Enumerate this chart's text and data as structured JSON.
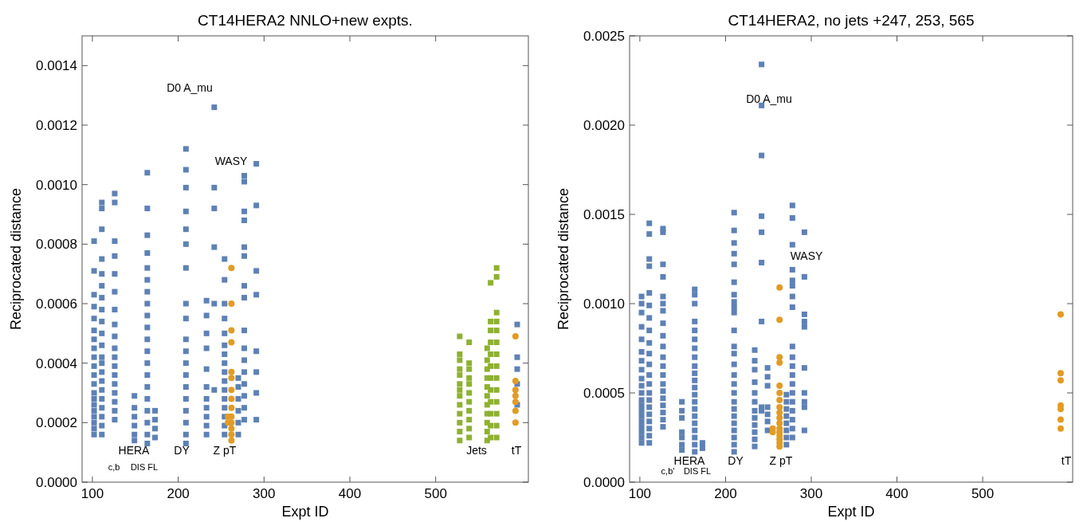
{
  "chart_data": [
    {
      "type": "scatter",
      "title": "CT14HERA2 NNLO+new expts.",
      "xlabel": "Expt ID",
      "ylabel": "Reciprocated distance",
      "xlim": [
        88,
        608
      ],
      "ylim": [
        0,
        0.0015
      ],
      "xticks": [
        100,
        200,
        300,
        400,
        500
      ],
      "yticks": [
        {
          "value": 0,
          "label": "0.0000"
        },
        {
          "value": 0.0002,
          "label": "0.0002"
        },
        {
          "value": 0.0004,
          "label": "0.0004"
        },
        {
          "value": 0.0006,
          "label": "0.0006"
        },
        {
          "value": 0.0008,
          "label": "0.0008"
        },
        {
          "value": 0.001,
          "label": "0.0010"
        },
        {
          "value": 0.0012,
          "label": "0.0012"
        },
        {
          "value": 0.0014,
          "label": "0.0014"
        }
      ],
      "grid": false,
      "annotations": [
        "D0 A_mu",
        "WASY",
        "HERA",
        "c,b",
        "DIS FL",
        "DY",
        "Z pT",
        "Jets",
        "tT"
      ],
      "series": [
        {
          "color": "#5e81b5",
          "marker": "square",
          "x": [
            102,
            102,
            102,
            102,
            102,
            102,
            102,
            102,
            102,
            102,
            102,
            102,
            102,
            102,
            102,
            102,
            102,
            102,
            102,
            102
          ],
          "values": [
            0.00016,
            0.00018,
            0.0002,
            0.00022,
            0.00024,
            0.00026,
            0.00028,
            0.0003,
            0.00033,
            0.00036,
            0.00039,
            0.00042,
            0.00045,
            0.00048,
            0.00051,
            0.00055,
            0.00059,
            0.00063,
            0.00071,
            0.00081
          ]
        },
        {
          "color": "#5e81b5",
          "marker": "square",
          "x": [
            111,
            111,
            111,
            111,
            111,
            111,
            111,
            111,
            111,
            111,
            111,
            111,
            111,
            111,
            111,
            111,
            111,
            111,
            111,
            111,
            111
          ],
          "values": [
            0.00016,
            0.00019,
            0.00022,
            0.00025,
            0.00028,
            0.00031,
            0.00034,
            0.00037,
            0.0004,
            0.00042,
            0.00046,
            0.0005,
            0.00054,
            0.00058,
            0.00062,
            0.00066,
            0.0007,
            0.00075,
            0.00085,
            0.00094,
            0.00092
          ]
        },
        {
          "color": "#5e81b5",
          "marker": "square",
          "x": [
            126,
            126,
            126,
            126,
            126,
            126,
            126,
            126,
            126,
            126,
            126,
            126,
            126,
            126,
            126,
            126,
            126,
            126
          ],
          "values": [
            0.00021,
            0.00024,
            0.00027,
            0.0003,
            0.00033,
            0.00036,
            0.00039,
            0.00042,
            0.00045,
            0.00049,
            0.00053,
            0.00058,
            0.00064,
            0.0007,
            0.00076,
            0.00081,
            0.00094,
            0.00097
          ]
        },
        {
          "color": "#5e81b5",
          "marker": "square",
          "x": [
            149,
            149,
            149,
            149,
            149,
            149
          ],
          "values": [
            0.00014,
            0.00016,
            0.00019,
            0.00022,
            0.00025,
            0.00029
          ]
        },
        {
          "color": "#5e81b5",
          "marker": "square",
          "x": [
            164,
            164,
            164,
            164,
            164,
            164,
            164,
            164,
            164,
            164,
            164,
            164,
            164,
            164,
            164,
            164,
            164,
            164,
            164,
            164
          ],
          "values": [
            0.00013,
            0.00016,
            0.0002,
            0.00024,
            0.00028,
            0.00032,
            0.00036,
            0.0004,
            0.00044,
            0.00048,
            0.00052,
            0.00056,
            0.0006,
            0.00064,
            0.00068,
            0.00072,
            0.00077,
            0.00083,
            0.00092,
            0.00104
          ]
        },
        {
          "color": "#5e81b5",
          "marker": "square",
          "x": [
            173,
            173,
            173,
            173
          ],
          "values": [
            0.00015,
            0.00018,
            0.00021,
            0.00024
          ]
        },
        {
          "color": "#5e81b5",
          "marker": "square",
          "x": [
            209,
            209,
            209,
            209,
            209,
            209,
            209,
            209,
            209,
            209,
            209,
            209,
            209,
            209,
            209,
            209,
            209,
            209,
            209
          ],
          "values": [
            0.00013,
            0.00016,
            0.0002,
            0.00024,
            0.00028,
            0.00032,
            0.00036,
            0.0004,
            0.00044,
            0.00048,
            0.00055,
            0.0006,
            0.00072,
            0.0008,
            0.00085,
            0.00091,
            0.00099,
            0.00105,
            0.00112
          ]
        },
        {
          "color": "#5e81b5",
          "marker": "square",
          "x": [
            233,
            233,
            233,
            233,
            233,
            233,
            233,
            233,
            233,
            233,
            233
          ],
          "values": [
            0.00016,
            0.00019,
            0.00022,
            0.00025,
            0.00028,
            0.00032,
            0.00038,
            0.00045,
            0.0005,
            0.00056,
            0.00061
          ]
        },
        {
          "color": "#5e81b5",
          "marker": "square",
          "x": [
            242,
            242,
            242,
            242,
            242,
            242
          ],
          "values": [
            0.00031,
            0.0006,
            0.00079,
            0.00092,
            0.00099,
            0.00126
          ]
        },
        {
          "color": "#5e81b5",
          "marker": "square",
          "x": [
            254,
            254,
            254,
            254,
            254,
            254,
            254,
            254,
            254,
            254,
            254,
            254,
            254,
            254,
            254,
            254
          ],
          "values": [
            0.00016,
            0.00019,
            0.00022,
            0.00025,
            0.00028,
            0.00031,
            0.00034,
            0.00037,
            0.0004,
            0.00043,
            0.00046,
            0.0005,
            0.00055,
            0.0006,
            0.00068,
            0.00075
          ]
        },
        {
          "color": "#5e81b5",
          "marker": "square",
          "x": [
            270,
            270,
            270,
            270,
            270,
            270
          ],
          "values": [
            0.00016,
            0.0002,
            0.00024,
            0.00028,
            0.00032,
            0.00035
          ]
        },
        {
          "color": "#5e81b5",
          "marker": "square",
          "x": [
            277,
            277,
            277,
            277,
            277,
            277,
            277,
            277,
            277,
            277,
            277,
            277,
            277,
            277,
            277,
            277
          ],
          "values": [
            0.00021,
            0.00025,
            0.00029,
            0.00033,
            0.00037,
            0.00041,
            0.00045,
            0.00051,
            0.00062,
            0.00066,
            0.00076,
            0.00079,
            0.00088,
            0.00091,
            0.00101,
            0.00103
          ]
        },
        {
          "color": "#5e81b5",
          "marker": "square",
          "x": [
            291,
            291,
            291,
            291,
            291,
            291,
            291,
            291
          ],
          "values": [
            0.00021,
            0.0003,
            0.00037,
            0.00044,
            0.00063,
            0.00071,
            0.00093,
            0.00107
          ]
        },
        {
          "color": "#5e81b5",
          "marker": "square",
          "x": [
            595,
            595,
            595,
            595,
            595
          ],
          "values": [
            0.00026,
            0.00033,
            0.00038,
            0.00042,
            0.00053
          ]
        },
        {
          "color": "#8fb131",
          "marker": "square",
          "x": [
            528,
            528,
            528,
            528,
            528,
            528,
            528,
            528,
            528,
            528,
            528,
            528,
            528
          ],
          "values": [
            0.00014,
            0.00017,
            0.0002,
            0.00023,
            0.00026,
            0.00029,
            0.00031,
            0.00033,
            0.00036,
            0.00038,
            0.00041,
            0.00043,
            0.00049
          ]
        },
        {
          "color": "#8fb131",
          "marker": "square",
          "x": [
            539,
            539,
            539,
            539,
            539,
            539,
            539,
            539,
            539,
            539,
            539
          ],
          "values": [
            0.00015,
            0.00018,
            0.00021,
            0.00024,
            0.00027,
            0.0003,
            0.00033,
            0.00035,
            0.00038,
            0.0004,
            0.00047
          ]
        },
        {
          "color": "#8fb131",
          "marker": "square",
          "x": [
            560,
            560,
            560,
            560,
            560,
            560,
            560,
            560,
            560,
            560,
            560
          ],
          "values": [
            0.00014,
            0.00017,
            0.0002,
            0.00023,
            0.00026,
            0.00029,
            0.00032,
            0.00035,
            0.00038,
            0.00041,
            0.00045
          ]
        },
        {
          "color": "#8fb131",
          "marker": "square",
          "x": [
            564,
            564,
            564,
            564,
            564,
            564,
            564,
            564,
            564,
            564,
            564,
            564
          ],
          "values": [
            0.00015,
            0.00019,
            0.00023,
            0.00027,
            0.00031,
            0.00035,
            0.00039,
            0.00043,
            0.00047,
            0.00051,
            0.00054,
            0.00067
          ]
        },
        {
          "color": "#8fb131",
          "marker": "square",
          "x": [
            571,
            571,
            571,
            571,
            571,
            571,
            571,
            571,
            571,
            571,
            571,
            571,
            571,
            571
          ],
          "values": [
            0.00015,
            0.00019,
            0.00023,
            0.00027,
            0.00031,
            0.00035,
            0.00039,
            0.00043,
            0.00047,
            0.00051,
            0.00054,
            0.00057,
            0.00069,
            0.00072
          ]
        },
        {
          "color": "#e19c24",
          "marker": "circle",
          "x": [
            262,
            262,
            262,
            262,
            262,
            262,
            262,
            262,
            262,
            262,
            262,
            262,
            262,
            262,
            258,
            258
          ],
          "values": [
            0.00014,
            0.00016,
            0.00018,
            0.0002,
            0.00022,
            0.00025,
            0.00028,
            0.00031,
            0.00035,
            0.00037,
            0.00047,
            0.00051,
            0.0006,
            0.00072,
            0.0002,
            0.00022
          ]
        },
        {
          "color": "#e19c24",
          "marker": "circle",
          "x": [
            593,
            593,
            593,
            593,
            593,
            593,
            593
          ],
          "values": [
            0.0002,
            0.00024,
            0.00027,
            0.00029,
            0.00031,
            0.00034,
            0.00049
          ]
        }
      ]
    },
    {
      "type": "scatter",
      "title": "CT14HERA2, no jets +247, 253, 565",
      "xlabel": "Expt ID",
      "ylabel": "Reciprocated distance",
      "xlim": [
        88,
        605
      ],
      "ylim": [
        0,
        0.0025
      ],
      "xticks": [
        100,
        200,
        300,
        400,
        500
      ],
      "yticks": [
        {
          "value": 0,
          "label": "0.0000"
        },
        {
          "value": 0.0005,
          "label": "0.0005"
        },
        {
          "value": 0.001,
          "label": "0.0010"
        },
        {
          "value": 0.0015,
          "label": "0.0015"
        },
        {
          "value": 0.002,
          "label": "0.0020"
        },
        {
          "value": 0.0025,
          "label": "0.0025"
        }
      ],
      "grid": false,
      "annotations": [
        "D0 A_mu",
        "WASY",
        "HERA",
        "c,b'",
        "DIS FL",
        "DY",
        "Z pT",
        "tT"
      ],
      "series": [
        {
          "color": "#5e81b5",
          "marker": "square",
          "x": [
            102,
            102,
            102,
            102,
            102,
            102,
            102,
            102,
            102,
            102,
            102,
            102,
            102,
            102,
            102,
            102,
            102,
            102,
            102,
            102
          ],
          "values": [
            0.00022,
            0.00025,
            0.00028,
            0.00031,
            0.00034,
            0.00037,
            0.0004,
            0.00043,
            0.00046,
            0.0005,
            0.00054,
            0.00058,
            0.00063,
            0.00068,
            0.00073,
            0.0008,
            0.00087,
            0.00095,
            0.001,
            0.00104
          ]
        },
        {
          "color": "#5e81b5",
          "marker": "square",
          "x": [
            111,
            111,
            111,
            111,
            111,
            111,
            111,
            111,
            111,
            111,
            111,
            111,
            111,
            111,
            111,
            111,
            111,
            111,
            111,
            111,
            111
          ],
          "values": [
            0.00022,
            0.00026,
            0.0003,
            0.00034,
            0.00038,
            0.00042,
            0.00046,
            0.0005,
            0.00055,
            0.0006,
            0.00066,
            0.00072,
            0.00078,
            0.00085,
            0.00092,
            0.00099,
            0.00106,
            0.00121,
            0.00125,
            0.00139,
            0.00145
          ]
        },
        {
          "color": "#5e81b5",
          "marker": "square",
          "x": [
            127,
            127,
            127,
            127,
            127,
            127,
            127,
            127,
            127,
            127,
            127,
            127,
            127,
            127,
            127,
            127,
            127,
            127,
            127,
            127
          ],
          "values": [
            0.00031,
            0.00035,
            0.00039,
            0.00043,
            0.00047,
            0.00051,
            0.00055,
            0.0006,
            0.00065,
            0.0007,
            0.00076,
            0.00082,
            0.00089,
            0.00096,
            0.001,
            0.00104,
            0.00115,
            0.00122,
            0.0014,
            0.00142
          ]
        },
        {
          "color": "#5e81b5",
          "marker": "square",
          "x": [
            149,
            149,
            149,
            149,
            149,
            149,
            149
          ],
          "values": [
            0.00018,
            0.00021,
            0.00025,
            0.00028,
            0.00036,
            0.0004,
            0.00045
          ]
        },
        {
          "color": "#5e81b5",
          "marker": "square",
          "x": [
            164,
            164,
            164,
            164,
            164,
            164,
            164,
            164,
            164,
            164,
            164,
            164,
            164,
            164,
            164,
            164,
            164,
            164,
            164,
            164,
            164
          ],
          "values": [
            0.00017,
            0.00021,
            0.00025,
            0.00029,
            0.00033,
            0.00037,
            0.00041,
            0.00045,
            0.00049,
            0.00053,
            0.00057,
            0.00061,
            0.00065,
            0.0007,
            0.00075,
            0.0008,
            0.00085,
            0.0009,
            0.001,
            0.00105,
            0.00108
          ]
        },
        {
          "color": "#5e81b5",
          "marker": "square",
          "x": [
            173,
            173
          ],
          "values": [
            0.00019,
            0.00022
          ]
        },
        {
          "color": "#5e81b5",
          "marker": "square",
          "x": [
            210,
            210,
            210,
            210,
            210,
            210,
            210,
            210,
            210,
            210,
            210,
            210,
            210,
            210,
            210,
            210,
            210,
            210,
            210,
            210,
            210,
            210,
            210,
            210,
            210
          ],
          "values": [
            0.00017,
            0.00021,
            0.00025,
            0.00029,
            0.00033,
            0.00037,
            0.00041,
            0.00045,
            0.0005,
            0.00055,
            0.0006,
            0.00066,
            0.00072,
            0.00076,
            0.00085,
            0.00095,
            0.00098,
            0.00101,
            0.00105,
            0.00112,
            0.00122,
            0.00128,
            0.00134,
            0.00141,
            0.00151
          ]
        },
        {
          "color": "#5e81b5",
          "marker": "square",
          "x": [
            234,
            234,
            234,
            234,
            234,
            234,
            234,
            234,
            234,
            234,
            234,
            234
          ],
          "values": [
            0.0002,
            0.00024,
            0.00028,
            0.00032,
            0.00036,
            0.0004,
            0.00045,
            0.0005,
            0.00056,
            0.00063,
            0.00068,
            0.00074
          ]
        },
        {
          "color": "#5e81b5",
          "marker": "square",
          "x": [
            242,
            242,
            242,
            242,
            242,
            242,
            242,
            242,
            242
          ],
          "values": [
            0.0004,
            0.00042,
            0.0009,
            0.00123,
            0.0014,
            0.00149,
            0.00183,
            0.00211,
            0.00234
          ]
        },
        {
          "color": "#5e81b5",
          "marker": "square",
          "x": [
            249,
            249,
            249,
            249,
            249,
            249,
            249
          ],
          "values": [
            0.00029,
            0.00034,
            0.00038,
            0.00042,
            0.00054,
            0.00059,
            0.00064
          ]
        },
        {
          "color": "#5e81b5",
          "marker": "square",
          "x": [
            271,
            271,
            271,
            271,
            271,
            271,
            271,
            271
          ],
          "values": [
            0.00021,
            0.00025,
            0.00029,
            0.00033,
            0.00037,
            0.00041,
            0.00045,
            0.00049
          ]
        },
        {
          "color": "#5e81b5",
          "marker": "square",
          "x": [
            278,
            278,
            278,
            278,
            278,
            278,
            278,
            278,
            278,
            278,
            278,
            278,
            278,
            278,
            278,
            278,
            278,
            278,
            278
          ],
          "values": [
            0.00025,
            0.0003,
            0.00035,
            0.0004,
            0.00045,
            0.0005,
            0.00055,
            0.0006,
            0.00065,
            0.0007,
            0.00076,
            0.00098,
            0.00104,
            0.0011,
            0.00113,
            0.00119,
            0.00133,
            0.00148,
            0.00155
          ]
        },
        {
          "color": "#5e81b5",
          "marker": "square",
          "x": [
            292,
            292,
            292,
            292,
            292,
            292,
            292,
            292,
            292,
            292
          ],
          "values": [
            0.00029,
            0.00042,
            0.00045,
            0.0005,
            0.00064,
            0.00087,
            0.0009,
            0.00094,
            0.00115,
            0.0014
          ]
        },
        {
          "color": "#e19c24",
          "marker": "circle",
          "x": [
            255,
            255,
            263,
            263,
            263,
            263,
            263,
            263,
            263,
            263,
            263,
            263,
            263,
            263,
            263,
            263,
            263,
            263,
            263
          ],
          "values": [
            0.00028,
            0.0003,
            0.0002,
            0.00022,
            0.00024,
            0.00026,
            0.00028,
            0.0003,
            0.00033,
            0.00036,
            0.00039,
            0.00042,
            0.00046,
            0.0005,
            0.00054,
            0.00067,
            0.0007,
            0.00091,
            0.00109
          ]
        },
        {
          "color": "#e19c24",
          "marker": "circle",
          "x": [
            591,
            591,
            591,
            591,
            591,
            591,
            591
          ],
          "values": [
            0.0003,
            0.00035,
            0.00041,
            0.00043,
            0.00057,
            0.00061,
            0.00094
          ]
        }
      ]
    }
  ]
}
